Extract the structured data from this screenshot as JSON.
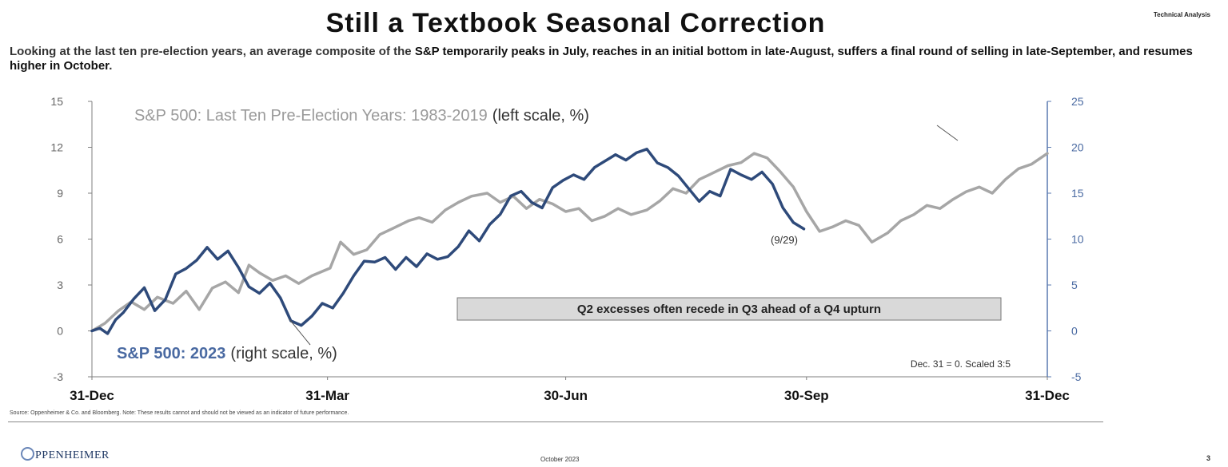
{
  "header": {
    "title": "Still a Textbook Seasonal Correction",
    "section": "Technical Analysis",
    "subtitle_pre": "Looking at the last ten pre-election years, an average composite of the ",
    "subtitle_hl": "S&P temporarily peaks in July, reaches in an initial bottom in late-August, suffers a final round of selling in late-September, and resumes higher in October",
    "subtitle_post": "."
  },
  "chart_data": {
    "type": "line",
    "x_type": "date",
    "x_range": [
      "2022-12-31",
      "2023-12-31"
    ],
    "x_ticks": [
      {
        "date": "2022-12-31",
        "label": "31-Dec"
      },
      {
        "date": "2023-03-31",
        "label": "31-Mar"
      },
      {
        "date": "2023-06-30",
        "label": "30-Jun"
      },
      {
        "date": "2023-09-30",
        "label": "30-Sep"
      },
      {
        "date": "2023-12-31",
        "label": "31-Dec"
      }
    ],
    "y_left": {
      "range": [
        -3,
        15
      ],
      "ticks": [
        -3,
        0,
        3,
        6,
        9,
        12,
        15
      ]
    },
    "y_right": {
      "range": [
        -5,
        25
      ],
      "ticks": [
        -5,
        0,
        5,
        10,
        15,
        20,
        25
      ]
    },
    "grid": false,
    "series": [
      {
        "name": "S&P 500: Last Ten Pre-Election Years: 1983-2019",
        "axis": "left",
        "color": "#a6a6a6",
        "points": [
          [
            "2022-12-31",
            0
          ],
          [
            "2023-01-05",
            0.5
          ],
          [
            "2023-01-10",
            1.3
          ],
          [
            "2023-01-15",
            1.9
          ],
          [
            "2023-01-20",
            1.4
          ],
          [
            "2023-01-25",
            2.2
          ],
          [
            "2023-01-31",
            1.8
          ],
          [
            "2023-02-05",
            2.6
          ],
          [
            "2023-02-10",
            1.4
          ],
          [
            "2023-02-15",
            2.8
          ],
          [
            "2023-02-20",
            3.2
          ],
          [
            "2023-02-25",
            2.5
          ],
          [
            "2023-03-01",
            4.3
          ],
          [
            "2023-03-05",
            3.8
          ],
          [
            "2023-03-10",
            3.3
          ],
          [
            "2023-03-15",
            3.6
          ],
          [
            "2023-03-20",
            3.1
          ],
          [
            "2023-03-25",
            3.6
          ],
          [
            "2023-04-01",
            4.1
          ],
          [
            "2023-04-05",
            5.8
          ],
          [
            "2023-04-10",
            5.0
          ],
          [
            "2023-04-15",
            5.3
          ],
          [
            "2023-04-20",
            6.3
          ],
          [
            "2023-04-25",
            6.7
          ],
          [
            "2023-05-01",
            7.2
          ],
          [
            "2023-05-05",
            7.4
          ],
          [
            "2023-05-10",
            7.1
          ],
          [
            "2023-05-15",
            7.9
          ],
          [
            "2023-05-20",
            8.4
          ],
          [
            "2023-05-25",
            8.8
          ],
          [
            "2023-05-31",
            9.0
          ],
          [
            "2023-06-05",
            8.4
          ],
          [
            "2023-06-10",
            8.8
          ],
          [
            "2023-06-15",
            8.0
          ],
          [
            "2023-06-20",
            8.6
          ],
          [
            "2023-06-25",
            8.3
          ],
          [
            "2023-06-30",
            7.8
          ],
          [
            "2023-07-05",
            8.0
          ],
          [
            "2023-07-10",
            7.2
          ],
          [
            "2023-07-15",
            7.5
          ],
          [
            "2023-07-20",
            8.0
          ],
          [
            "2023-07-25",
            7.6
          ],
          [
            "2023-07-31",
            7.9
          ],
          [
            "2023-08-05",
            8.5
          ],
          [
            "2023-08-10",
            9.3
          ],
          [
            "2023-08-15",
            9.0
          ],
          [
            "2023-08-20",
            9.9
          ],
          [
            "2023-08-25",
            10.3
          ],
          [
            "2023-08-31",
            10.8
          ],
          [
            "2023-09-05",
            11.0
          ],
          [
            "2023-09-10",
            11.6
          ],
          [
            "2023-09-15",
            11.3
          ],
          [
            "2023-09-20",
            10.4
          ],
          [
            "2023-09-25",
            9.4
          ],
          [
            "2023-09-30",
            7.8
          ],
          [
            "2023-10-05",
            6.5
          ],
          [
            "2023-10-10",
            6.8
          ],
          [
            "2023-10-15",
            7.2
          ],
          [
            "2023-10-20",
            6.9
          ],
          [
            "2023-10-25",
            5.8
          ],
          [
            "2023-10-31",
            6.4
          ],
          [
            "2023-11-05",
            7.2
          ],
          [
            "2023-11-10",
            7.6
          ],
          [
            "2023-11-15",
            8.2
          ],
          [
            "2023-11-20",
            8.0
          ],
          [
            "2023-11-25",
            8.6
          ],
          [
            "2023-11-30",
            9.1
          ],
          [
            "2023-12-05",
            9.4
          ],
          [
            "2023-12-10",
            9.0
          ],
          [
            "2023-12-15",
            9.9
          ],
          [
            "2023-12-20",
            10.6
          ],
          [
            "2023-12-25",
            10.9
          ],
          [
            "2023-12-31",
            11.6
          ]
        ]
      },
      {
        "name": "S&P 500: 2023",
        "axis": "right",
        "color": "#2e4a7a",
        "points": [
          [
            "2022-12-31",
            0
          ],
          [
            "2023-01-03",
            0.3
          ],
          [
            "2023-01-06",
            -0.3
          ],
          [
            "2023-01-09",
            1.2
          ],
          [
            "2023-01-12",
            2.0
          ],
          [
            "2023-01-16",
            3.5
          ],
          [
            "2023-01-20",
            4.7
          ],
          [
            "2023-01-24",
            2.2
          ],
          [
            "2023-01-28",
            3.4
          ],
          [
            "2023-02-01",
            6.2
          ],
          [
            "2023-02-05",
            6.8
          ],
          [
            "2023-02-09",
            7.7
          ],
          [
            "2023-02-13",
            9.1
          ],
          [
            "2023-02-17",
            7.8
          ],
          [
            "2023-02-21",
            8.7
          ],
          [
            "2023-02-25",
            6.9
          ],
          [
            "2023-03-01",
            4.8
          ],
          [
            "2023-03-05",
            4.1
          ],
          [
            "2023-03-09",
            5.2
          ],
          [
            "2023-03-13",
            3.6
          ],
          [
            "2023-03-17",
            1.1
          ],
          [
            "2023-03-21",
            0.6
          ],
          [
            "2023-03-25",
            1.6
          ],
          [
            "2023-03-29",
            3.0
          ],
          [
            "2023-04-02",
            2.5
          ],
          [
            "2023-04-06",
            4.1
          ],
          [
            "2023-04-10",
            6.0
          ],
          [
            "2023-04-14",
            7.6
          ],
          [
            "2023-04-18",
            7.5
          ],
          [
            "2023-04-22",
            8.0
          ],
          [
            "2023-04-26",
            6.7
          ],
          [
            "2023-04-30",
            8.0
          ],
          [
            "2023-05-04",
            7.0
          ],
          [
            "2023-05-08",
            8.4
          ],
          [
            "2023-05-12",
            7.8
          ],
          [
            "2023-05-16",
            8.1
          ],
          [
            "2023-05-20",
            9.2
          ],
          [
            "2023-05-24",
            10.9
          ],
          [
            "2023-05-28",
            9.8
          ],
          [
            "2023-06-01",
            11.6
          ],
          [
            "2023-06-05",
            12.7
          ],
          [
            "2023-06-09",
            14.7
          ],
          [
            "2023-06-13",
            15.2
          ],
          [
            "2023-06-17",
            14.0
          ],
          [
            "2023-06-21",
            13.4
          ],
          [
            "2023-06-25",
            15.6
          ],
          [
            "2023-06-29",
            16.4
          ],
          [
            "2023-07-03",
            17.0
          ],
          [
            "2023-07-07",
            16.5
          ],
          [
            "2023-07-11",
            17.8
          ],
          [
            "2023-07-15",
            18.5
          ],
          [
            "2023-07-19",
            19.2
          ],
          [
            "2023-07-23",
            18.6
          ],
          [
            "2023-07-27",
            19.4
          ],
          [
            "2023-07-31",
            19.8
          ],
          [
            "2023-08-04",
            18.3
          ],
          [
            "2023-08-08",
            17.8
          ],
          [
            "2023-08-12",
            16.9
          ],
          [
            "2023-08-16",
            15.5
          ],
          [
            "2023-08-20",
            14.1
          ],
          [
            "2023-08-24",
            15.2
          ],
          [
            "2023-08-28",
            14.7
          ],
          [
            "2023-09-01",
            17.6
          ],
          [
            "2023-09-05",
            17.0
          ],
          [
            "2023-09-09",
            16.5
          ],
          [
            "2023-09-13",
            17.3
          ],
          [
            "2023-09-17",
            16.0
          ],
          [
            "2023-09-21",
            13.4
          ],
          [
            "2023-09-25",
            11.8
          ],
          [
            "2023-09-29",
            11.1
          ]
        ]
      }
    ],
    "series_labels": {
      "gray_name": "S&P 500: Last Ten Pre-Election Years: 1983-2019",
      "gray_scale": "(left scale, %)",
      "blue_name": "S&P 500: 2023",
      "blue_scale": "(right scale, %)"
    },
    "annotations": {
      "date_marker": "(9/29)",
      "callout_box": "Q2 excesses often recede in Q3 ahead of a Q4 upturn",
      "note": "Dec. 31 = 0. Scaled 3:5"
    }
  },
  "footer": {
    "source": "Source:  Oppenheimer & Co. and Bloomberg. Note: These results cannot and should not be viewed as an indicator of future performance.",
    "logo_text": "PPENHEIMER",
    "date": "October 2023",
    "page": "3"
  }
}
